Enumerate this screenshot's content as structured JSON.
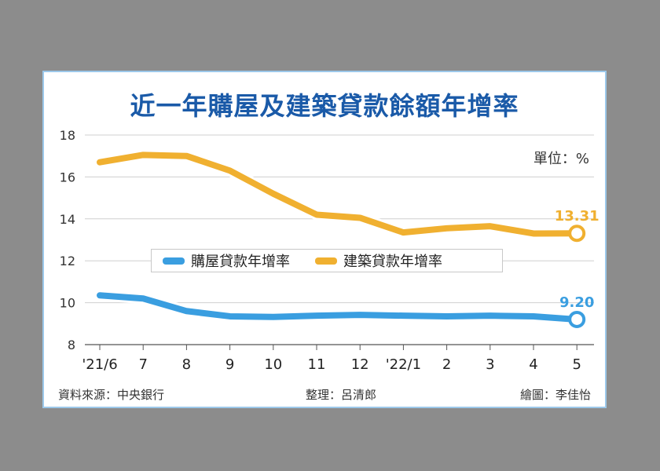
{
  "chart_data": {
    "type": "line",
    "title": "近一年購屋及建築貸款餘額年增率",
    "unit_label": "單位：%",
    "categories": [
      "'21/6",
      "7",
      "8",
      "9",
      "10",
      "11",
      "12",
      "'22/1",
      "2",
      "3",
      "4",
      "5"
    ],
    "yticks": [
      "8",
      "10",
      "12",
      "14",
      "16",
      "18"
    ],
    "ylim": [
      8,
      18
    ],
    "grid": "horizontal",
    "legend_position": "center",
    "series": [
      {
        "name": "購屋貸款年增率",
        "color": "#3a9ee0",
        "values": [
          10.35,
          10.2,
          9.6,
          9.35,
          9.32,
          9.38,
          9.42,
          9.38,
          9.35,
          9.38,
          9.35,
          9.2
        ],
        "end_label": "9.20"
      },
      {
        "name": "建築貸款年增率",
        "color": "#f0b030",
        "values": [
          16.7,
          17.05,
          17.0,
          16.3,
          15.2,
          14.2,
          14.05,
          13.35,
          13.55,
          13.65,
          13.3,
          13.31
        ],
        "end_label": "13.31"
      }
    ]
  },
  "footer": {
    "source": "資料來源：中央銀行",
    "compiled": "整理：呂清郎",
    "illustrated": "繪圖：李佳怡"
  }
}
